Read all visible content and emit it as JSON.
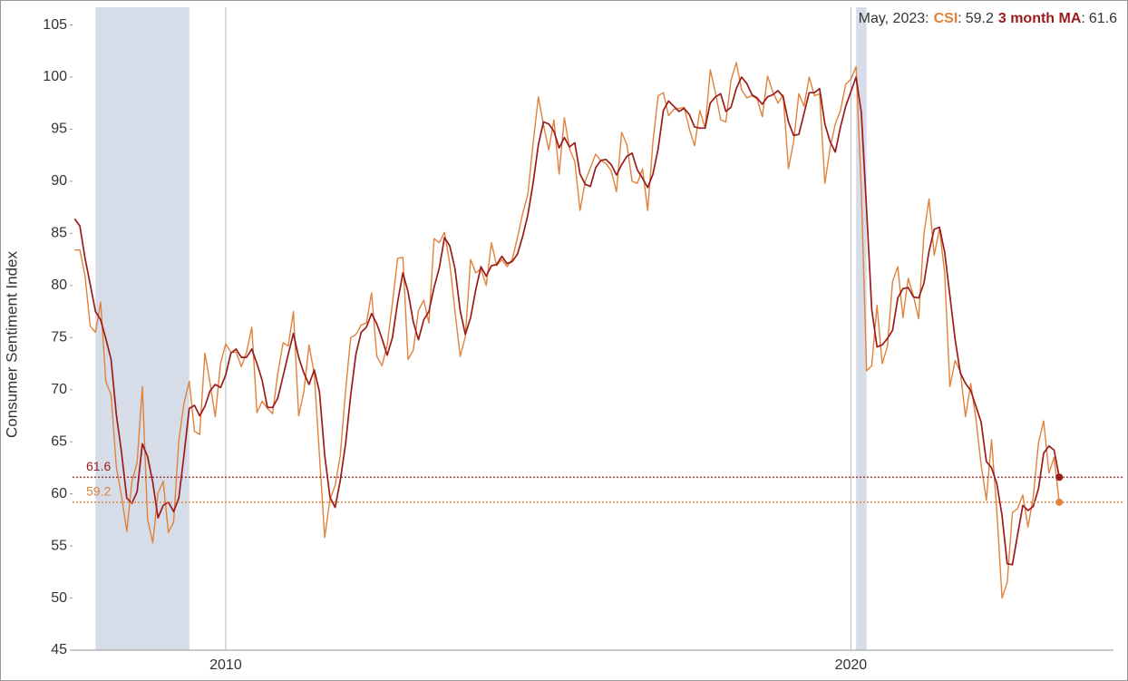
{
  "chart_data": {
    "type": "line",
    "y_label": "Consumer Sentiment Index",
    "annotation": {
      "date": "May, 2023:",
      "separator": ":"
    },
    "xlim": [
      2007.55,
      2024.2
    ],
    "xticks": [
      2010,
      2020
    ],
    "ylim": [
      45,
      106.7
    ],
    "yticks": [
      45,
      50,
      55,
      60,
      65,
      70,
      75,
      80,
      85,
      90,
      95,
      100,
      105
    ],
    "recessions": [
      [
        2007.917,
        2009.417
      ],
      [
        2020.083,
        2020.25
      ]
    ],
    "x": [
      2007.583,
      2007.667,
      2007.75,
      2007.833,
      2007.917,
      2008,
      2008.083,
      2008.167,
      2008.25,
      2008.333,
      2008.417,
      2008.5,
      2008.583,
      2008.667,
      2008.75,
      2008.833,
      2008.917,
      2009,
      2009.083,
      2009.167,
      2009.25,
      2009.333,
      2009.417,
      2009.5,
      2009.583,
      2009.667,
      2009.75,
      2009.833,
      2009.917,
      2010,
      2010.083,
      2010.167,
      2010.25,
      2010.333,
      2010.417,
      2010.5,
      2010.583,
      2010.667,
      2010.75,
      2010.833,
      2010.917,
      2011,
      2011.083,
      2011.167,
      2011.25,
      2011.333,
      2011.417,
      2011.5,
      2011.583,
      2011.667,
      2011.75,
      2011.833,
      2011.917,
      2012,
      2012.083,
      2012.167,
      2012.25,
      2012.333,
      2012.417,
      2012.5,
      2012.583,
      2012.667,
      2012.75,
      2012.833,
      2012.917,
      2013,
      2013.083,
      2013.167,
      2013.25,
      2013.333,
      2013.417,
      2013.5,
      2013.583,
      2013.667,
      2013.75,
      2013.833,
      2013.917,
      2014,
      2014.083,
      2014.167,
      2014.25,
      2014.333,
      2014.417,
      2014.5,
      2014.583,
      2014.667,
      2014.75,
      2014.833,
      2014.917,
      2015,
      2015.083,
      2015.167,
      2015.25,
      2015.333,
      2015.417,
      2015.5,
      2015.583,
      2015.667,
      2015.75,
      2015.833,
      2015.917,
      2016,
      2016.083,
      2016.167,
      2016.25,
      2016.333,
      2016.417,
      2016.5,
      2016.583,
      2016.667,
      2016.75,
      2016.833,
      2016.917,
      2017,
      2017.083,
      2017.167,
      2017.25,
      2017.333,
      2017.417,
      2017.5,
      2017.583,
      2017.667,
      2017.75,
      2017.833,
      2017.917,
      2018,
      2018.083,
      2018.167,
      2018.25,
      2018.333,
      2018.417,
      2018.5,
      2018.583,
      2018.667,
      2018.75,
      2018.833,
      2018.917,
      2019,
      2019.083,
      2019.167,
      2019.25,
      2019.333,
      2019.417,
      2019.5,
      2019.583,
      2019.667,
      2019.75,
      2019.833,
      2019.917,
      2020,
      2020.083,
      2020.167,
      2020.25,
      2020.333,
      2020.417,
      2020.5,
      2020.583,
      2020.667,
      2020.75,
      2020.833,
      2020.917,
      2021,
      2021.083,
      2021.167,
      2021.25,
      2021.333,
      2021.417,
      2021.5,
      2021.583,
      2021.667,
      2021.75,
      2021.833,
      2021.917,
      2022,
      2022.083,
      2022.167,
      2022.25,
      2022.333,
      2022.417,
      2022.5,
      2022.583,
      2022.667,
      2022.75,
      2022.833,
      2022.917,
      2023,
      2023.083,
      2023.167,
      2023.25,
      2023.333
    ],
    "series": [
      {
        "name": "CSI",
        "color": "#e0823a",
        "values": [
          83.4,
          83.4,
          80.9,
          76.1,
          75.5,
          78.4,
          70.8,
          69.5,
          62.6,
          59.8,
          56.4,
          61.2,
          63.0,
          70.3,
          57.6,
          55.3,
          60.1,
          61.2,
          56.3,
          57.3,
          65.1,
          68.7,
          70.8,
          66.0,
          65.7,
          73.5,
          70.6,
          67.4,
          72.5,
          74.4,
          73.6,
          73.6,
          72.2,
          73.6,
          76.0,
          67.8,
          68.9,
          68.2,
          67.7,
          71.6,
          74.5,
          74.2,
          77.5,
          67.5,
          69.8,
          74.3,
          71.5,
          63.7,
          55.8,
          59.5,
          60.8,
          63.7,
          69.9,
          75.0,
          75.3,
          76.2,
          76.4,
          79.3,
          73.2,
          72.3,
          74.3,
          78.3,
          82.6,
          82.7,
          72.9,
          73.8,
          77.6,
          78.6,
          76.4,
          84.5,
          84.1,
          85.1,
          82.1,
          77.5,
          73.2,
          75.1,
          82.5,
          81.2,
          81.6,
          80.0,
          84.1,
          81.9,
          82.5,
          81.8,
          82.5,
          84.6,
          86.9,
          88.8,
          93.6,
          98.1,
          95.4,
          93.0,
          95.9,
          90.7,
          96.1,
          93.1,
          91.9,
          87.2,
          90.0,
          91.3,
          92.6,
          92.0,
          91.7,
          91.0,
          89.0,
          94.7,
          93.5,
          90.0,
          89.8,
          91.2,
          87.2,
          93.8,
          98.2,
          98.5,
          96.3,
          96.9,
          97.0,
          97.1,
          95.0,
          93.4,
          96.8,
          95.1,
          100.7,
          98.5,
          95.9,
          95.7,
          99.7,
          101.4,
          98.8,
          98.0,
          98.2,
          97.9,
          96.2,
          100.1,
          98.6,
          97.5,
          98.3,
          91.2,
          93.8,
          98.4,
          97.2,
          100.0,
          98.2,
          98.4,
          89.8,
          93.2,
          95.5,
          96.8,
          99.3,
          99.8,
          101.0,
          89.1,
          71.8,
          72.3,
          78.1,
          72.5,
          74.1,
          80.4,
          81.8,
          76.9,
          80.7,
          79.0,
          76.8,
          84.9,
          88.3,
          82.9,
          85.5,
          81.2,
          70.3,
          72.8,
          71.7,
          67.4,
          70.6,
          67.2,
          62.8,
          59.4,
          65.2,
          58.4,
          50.0,
          51.5,
          58.2,
          58.6,
          59.9,
          56.8,
          59.7,
          64.9,
          67.0,
          62.0,
          63.5,
          59.2
        ]
      },
      {
        "name": "3 month MA",
        "color": "#9b1b1b",
        "values": [
          86.4,
          85.7,
          82.6,
          80.1,
          77.5,
          76.7,
          74.9,
          72.9,
          67.6,
          64.0,
          59.6,
          59.1,
          60.2,
          64.8,
          63.6,
          61.1,
          57.7,
          58.9,
          59.2,
          58.3,
          59.6,
          63.7,
          68.2,
          68.5,
          67.5,
          68.4,
          69.9,
          70.5,
          70.2,
          71.4,
          73.5,
          73.9,
          73.1,
          73.1,
          73.9,
          72.5,
          70.9,
          68.3,
          68.3,
          69.2,
          71.3,
          73.4,
          75.4,
          73.1,
          71.6,
          70.5,
          71.9,
          69.8,
          63.7,
          59.7,
          58.7,
          61.3,
          64.8,
          69.5,
          73.4,
          75.5,
          76.0,
          77.3,
          76.3,
          74.9,
          73.3,
          75.0,
          78.4,
          81.2,
          79.4,
          76.5,
          74.8,
          76.7,
          77.5,
          79.8,
          81.7,
          84.6,
          83.8,
          81.6,
          77.6,
          75.3,
          76.9,
          79.6,
          81.8,
          80.9,
          81.9,
          82.0,
          82.8,
          82.1,
          82.3,
          83.0,
          84.7,
          86.8,
          89.8,
          93.5,
          95.7,
          95.5,
          94.8,
          93.2,
          94.2,
          93.3,
          93.7,
          90.7,
          89.7,
          89.5,
          91.3,
          92.0,
          92.1,
          91.6,
          90.6,
          91.6,
          92.4,
          92.7,
          91.1,
          90.3,
          89.4,
          90.7,
          93.1,
          96.8,
          97.7,
          97.2,
          96.7,
          97.0,
          96.4,
          95.2,
          95.1,
          95.1,
          97.5,
          98.1,
          98.4,
          96.7,
          97.1,
          98.9,
          100.0,
          99.4,
          98.3,
          98.0,
          97.4,
          98.1,
          98.3,
          98.7,
          98.1,
          95.7,
          94.4,
          94.5,
          96.5,
          98.5,
          98.5,
          98.9,
          95.5,
          93.8,
          92.8,
          95.2,
          97.2,
          98.6,
          100.0,
          96.6,
          87.3,
          77.7,
          74.1,
          74.3,
          74.9,
          75.7,
          78.8,
          79.7,
          79.8,
          78.9,
          78.8,
          80.2,
          83.3,
          85.4,
          85.6,
          83.2,
          79.0,
          74.8,
          71.6,
          70.6,
          69.9,
          68.4,
          66.9,
          63.1,
          62.5,
          61.0,
          57.9,
          53.3,
          53.2,
          56.1,
          58.9,
          58.4,
          58.8,
          60.5,
          63.9,
          64.6,
          64.2,
          61.6
        ]
      }
    ]
  }
}
